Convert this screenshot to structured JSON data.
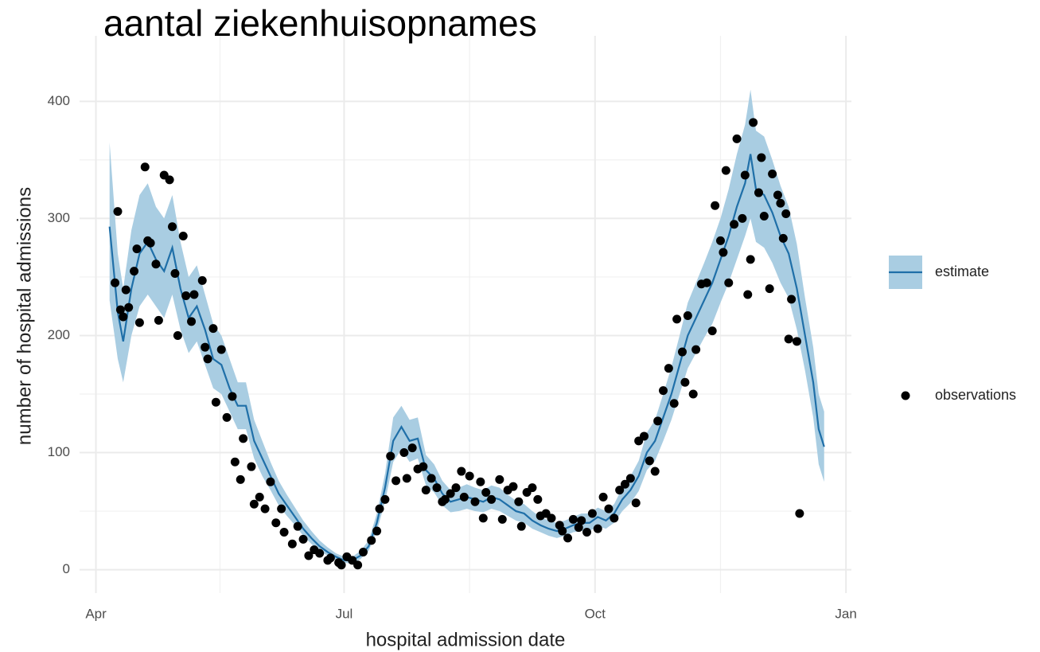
{
  "chart_data": {
    "type": "line",
    "title": "aantal ziekenhuisopnames",
    "x_label": "hospital admission date",
    "y_label": "number of hospital admissions",
    "xlim": [
      -6,
      277
    ],
    "ylim": [
      -20,
      456
    ],
    "xticks": [
      {
        "value": 0,
        "label": "Apr"
      },
      {
        "value": 91,
        "label": "Jul"
      },
      {
        "value": 183,
        "label": "Oct"
      },
      {
        "value": 275,
        "label": "Jan"
      }
    ],
    "yticks": [
      0,
      100,
      200,
      300,
      400
    ],
    "minor_xticks": [
      45.5,
      137,
      229
    ],
    "minor_yticks": [
      50,
      150,
      250,
      350
    ],
    "grid": true,
    "series": [
      {
        "name": "estimate",
        "type": "line",
        "color": "#1f6fa8",
        "band_color": "#a9cde2",
        "x": [
          5,
          8,
          10,
          13,
          16,
          19,
          22,
          25,
          28,
          31,
          34,
          37,
          40,
          43,
          46,
          49,
          52,
          55,
          58,
          61,
          64,
          67,
          70,
          73,
          76,
          79,
          82,
          85,
          88,
          91,
          94,
          97,
          100,
          103,
          106,
          109,
          112,
          115,
          118,
          121,
          124,
          127,
          130,
          133,
          136,
          139,
          142,
          145,
          148,
          151,
          154,
          157,
          160,
          163,
          166,
          169,
          172,
          175,
          178,
          181,
          184,
          187,
          190,
          193,
          196,
          199,
          202,
          205,
          208,
          211,
          214,
          217,
          220,
          223,
          226,
          229,
          232,
          235,
          238,
          240,
          242,
          245,
          248,
          251,
          254,
          257,
          260,
          263,
          265,
          267
        ],
        "values": [
          293,
          220,
          195,
          240,
          270,
          280,
          265,
          255,
          275,
          240,
          215,
          225,
          205,
          180,
          175,
          155,
          140,
          140,
          110,
          95,
          80,
          65,
          55,
          45,
          35,
          27,
          20,
          15,
          11,
          8,
          8,
          12,
          20,
          40,
          70,
          110,
          122,
          110,
          112,
          85,
          78,
          65,
          58,
          60,
          62,
          60,
          58,
          62,
          60,
          55,
          50,
          48,
          42,
          38,
          35,
          33,
          35,
          38,
          40,
          40,
          45,
          42,
          48,
          60,
          68,
          80,
          100,
          110,
          130,
          150,
          175,
          200,
          215,
          230,
          245,
          265,
          285,
          310,
          330,
          355,
          325,
          320,
          305,
          285,
          270,
          240,
          200,
          160,
          120,
          105
        ],
        "lower": [
          230,
          180,
          160,
          200,
          225,
          235,
          225,
          215,
          235,
          205,
          185,
          195,
          175,
          155,
          150,
          135,
          120,
          120,
          95,
          80,
          68,
          55,
          46,
          38,
          29,
          22,
          16,
          12,
          8,
          6,
          5,
          9,
          16,
          33,
          58,
          92,
          103,
          92,
          95,
          72,
          66,
          55,
          49,
          50,
          52,
          50,
          49,
          52,
          50,
          46,
          42,
          40,
          35,
          32,
          29,
          27,
          29,
          32,
          33,
          33,
          37,
          35,
          40,
          50,
          57,
          67,
          85,
          93,
          110,
          128,
          150,
          172,
          185,
          198,
          210,
          228,
          245,
          265,
          285,
          300,
          280,
          275,
          262,
          245,
          232,
          205,
          170,
          130,
          90,
          75
        ],
        "upper": [
          365,
          270,
          240,
          290,
          320,
          330,
          310,
          300,
          320,
          280,
          250,
          260,
          235,
          210,
          200,
          180,
          160,
          160,
          128,
          110,
          92,
          76,
          64,
          53,
          42,
          33,
          25,
          19,
          14,
          11,
          11,
          16,
          25,
          48,
          82,
          130,
          140,
          128,
          130,
          98,
          90,
          76,
          68,
          70,
          73,
          70,
          68,
          72,
          70,
          64,
          59,
          56,
          50,
          45,
          42,
          40,
          42,
          45,
          48,
          48,
          53,
          50,
          56,
          70,
          80,
          93,
          117,
          128,
          150,
          173,
          200,
          228,
          245,
          262,
          280,
          300,
          325,
          355,
          380,
          410,
          375,
          370,
          350,
          328,
          310,
          278,
          232,
          190,
          150,
          135
        ]
      },
      {
        "name": "observations",
        "type": "scatter",
        "color": "#000000",
        "x": [
          7,
          8,
          9,
          10,
          11,
          12,
          14,
          15,
          16,
          18,
          19,
          20,
          22,
          23,
          25,
          27,
          28,
          29,
          30,
          32,
          33,
          35,
          36,
          39,
          40,
          41,
          43,
          44,
          46,
          48,
          50,
          51,
          53,
          54,
          57,
          58,
          60,
          62,
          64,
          66,
          68,
          69,
          72,
          74,
          76,
          78,
          80,
          82,
          85,
          86,
          89,
          90,
          92,
          94,
          96,
          98,
          101,
          103,
          104,
          106,
          108,
          110,
          113,
          114,
          116,
          118,
          120,
          121,
          123,
          125,
          127,
          128,
          130,
          132,
          134,
          135,
          137,
          139,
          141,
          142,
          143,
          145,
          148,
          149,
          151,
          153,
          155,
          156,
          158,
          160,
          162,
          163,
          165,
          167,
          170,
          171,
          173,
          175,
          177,
          178,
          180,
          182,
          184,
          186,
          188,
          190,
          192,
          194,
          196,
          198,
          199,
          201,
          203,
          205,
          206,
          208,
          210,
          212,
          213,
          215,
          216,
          217,
          219,
          220,
          222,
          224,
          226,
          227,
          229,
          230,
          231,
          232,
          234,
          235,
          237,
          238,
          239,
          240,
          241,
          243,
          244,
          245,
          247,
          248,
          250,
          251,
          252,
          253,
          254,
          255,
          257,
          258
        ],
        "values": [
          245,
          306,
          222,
          216,
          239,
          224,
          255,
          274,
          211,
          344,
          281,
          279,
          261,
          213,
          337,
          333,
          293,
          253,
          200,
          285,
          234,
          212,
          235,
          247,
          190,
          180,
          206,
          143,
          188,
          130,
          148,
          92,
          77,
          112,
          88,
          56,
          62,
          52,
          75,
          40,
          52,
          32,
          22,
          37,
          26,
          12,
          17,
          14,
          8,
          10,
          6,
          4,
          11,
          8,
          4,
          15,
          25,
          33,
          52,
          60,
          97,
          76,
          100,
          78,
          104,
          86,
          88,
          68,
          78,
          70,
          58,
          60,
          65,
          70,
          84,
          62,
          80,
          58,
          75,
          44,
          66,
          60,
          77,
          43,
          68,
          71,
          58,
          37,
          66,
          70,
          60,
          46,
          48,
          44,
          38,
          33,
          27,
          43,
          36,
          42,
          32,
          48,
          35,
          62,
          52,
          44,
          68,
          73,
          78,
          57,
          110,
          114,
          93,
          84,
          127,
          153,
          172,
          142,
          214,
          186,
          160,
          217,
          150,
          188,
          244,
          245,
          204,
          311,
          281,
          271,
          341,
          245,
          295,
          368,
          300,
          337,
          235,
          265,
          382,
          322,
          352,
          302,
          240,
          338,
          320,
          313,
          283,
          304,
          197,
          231,
          195,
          48
        ]
      }
    ],
    "legend": "right"
  }
}
